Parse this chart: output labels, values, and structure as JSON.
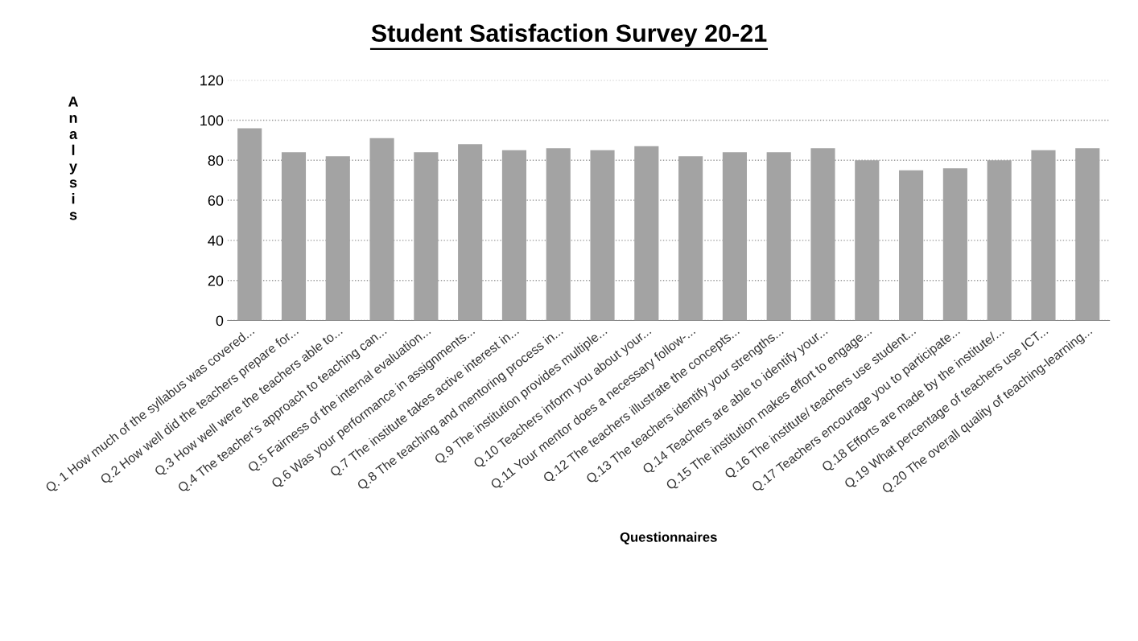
{
  "chart_data": {
    "type": "bar",
    "title": "Student Satisfaction Survey 20-21",
    "xlabel": "Questionnaires",
    "ylabel": "Analysis",
    "categories": [
      "Q. 1 How much of the syllabus was covered...",
      "Q.2 How well did the teachers prepare for...",
      "Q.3 How well were the teachers able to...",
      "Q.4 The teacher’s approach to teaching can...",
      "Q.5 Fairness of the internal evaluation...",
      "Q.6 Was your performance in assignments...",
      "Q.7 The institute takes active interest in...",
      "Q.8 The teaching and mentoring process in...",
      "Q.9 The institution provides multiple...",
      "Q.10 Teachers inform you about your...",
      "Q.11 Your mentor does a necessary follow-...",
      "Q.12 The teachers illustrate the concepts...",
      "Q.13 The teachers identify your strengths...",
      "Q.14 Teachers are able to identify your...",
      "Q.15 The institution makes effort to engage...",
      "Q.16 The institute/ teachers use student...",
      "Q.17 Teachers encourage you to participate...",
      "Q.18 Efforts are made by the institute/...",
      "Q.19 What percentage of teachers use ICT...",
      "Q.20 The overall quality of teaching-learning..."
    ],
    "values": [
      96,
      84,
      82,
      91,
      84,
      88,
      85,
      86,
      85,
      87,
      82,
      84,
      84,
      86,
      80,
      75,
      76,
      80,
      85,
      86
    ],
    "color": "#a3a3a3",
    "ylim": [
      0,
      120
    ],
    "yticks": [
      0,
      20,
      40,
      60,
      80,
      100,
      120
    ],
    "grid": "y",
    "legend": false
  }
}
